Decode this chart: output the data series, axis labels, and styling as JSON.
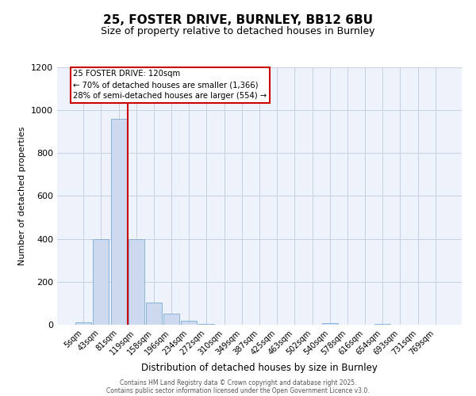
{
  "title": "25, FOSTER DRIVE, BURNLEY, BB12 6BU",
  "subtitle": "Size of property relative to detached houses in Burnley",
  "xlabel": "Distribution of detached houses by size in Burnley",
  "ylabel": "Number of detached properties",
  "bar_labels": [
    "5sqm",
    "43sqm",
    "81sqm",
    "119sqm",
    "158sqm",
    "196sqm",
    "234sqm",
    "272sqm",
    "310sqm",
    "349sqm",
    "387sqm",
    "425sqm",
    "463sqm",
    "502sqm",
    "540sqm",
    "578sqm",
    "616sqm",
    "654sqm",
    "693sqm",
    "731sqm",
    "769sqm"
  ],
  "bar_values": [
    10,
    400,
    960,
    400,
    105,
    50,
    18,
    5,
    0,
    0,
    0,
    0,
    0,
    0,
    7,
    0,
    0,
    5,
    0,
    0,
    0
  ],
  "bar_color": "#cdd9ee",
  "bar_edgecolor": "#7aaad4",
  "annotation_title": "25 FOSTER DRIVE: 120sqm",
  "annotation_line1": "← 70% of detached houses are smaller (1,366)",
  "annotation_line2": "28% of semi-detached houses are larger (554) →",
  "annotation_box_facecolor": "#ffffff",
  "annotation_box_edgecolor": "#cc0000",
  "red_line_color": "#cc0000",
  "red_line_x": 2.5,
  "ylim": [
    0,
    1200
  ],
  "yticks": [
    0,
    200,
    400,
    600,
    800,
    1000,
    1200
  ],
  "bg_color": "#edf2fb",
  "grid_color": "#c5cfe0",
  "title_fontsize": 11,
  "subtitle_fontsize": 9,
  "xlabel_fontsize": 8.5,
  "ylabel_fontsize": 8,
  "tick_fontsize": 7,
  "footer1": "Contains HM Land Registry data © Crown copyright and database right 2025.",
  "footer2": "Contains public sector information licensed under the Open Government Licence v3.0."
}
